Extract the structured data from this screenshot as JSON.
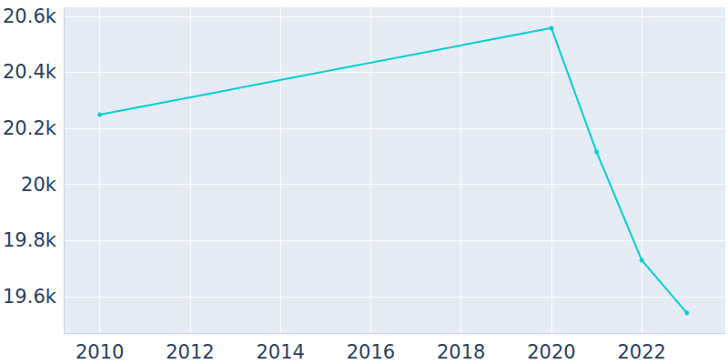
{
  "chart_data": {
    "type": "line",
    "x": [
      2010,
      2020,
      2021,
      2022,
      2023
    ],
    "values": [
      20249,
      20558,
      20116,
      19730,
      19542
    ],
    "color": "#00ced1",
    "marker": "circle",
    "line_style": "solid",
    "xlim": [
      2009.2,
      2023.85
    ],
    "xticks": [
      2010,
      2012,
      2014,
      2016,
      2018,
      2020,
      2022
    ],
    "ylim": [
      19470,
      20632
    ],
    "yticks": [
      {
        "value": 19600,
        "label": "19.6k"
      },
      {
        "value": 19800,
        "label": "19.8k"
      },
      {
        "value": 20000,
        "label": "20k"
      },
      {
        "value": 20200,
        "label": "20.2k"
      },
      {
        "value": 20400,
        "label": "20.4k"
      },
      {
        "value": 20600,
        "label": "20.6k"
      }
    ],
    "grid": true
  }
}
